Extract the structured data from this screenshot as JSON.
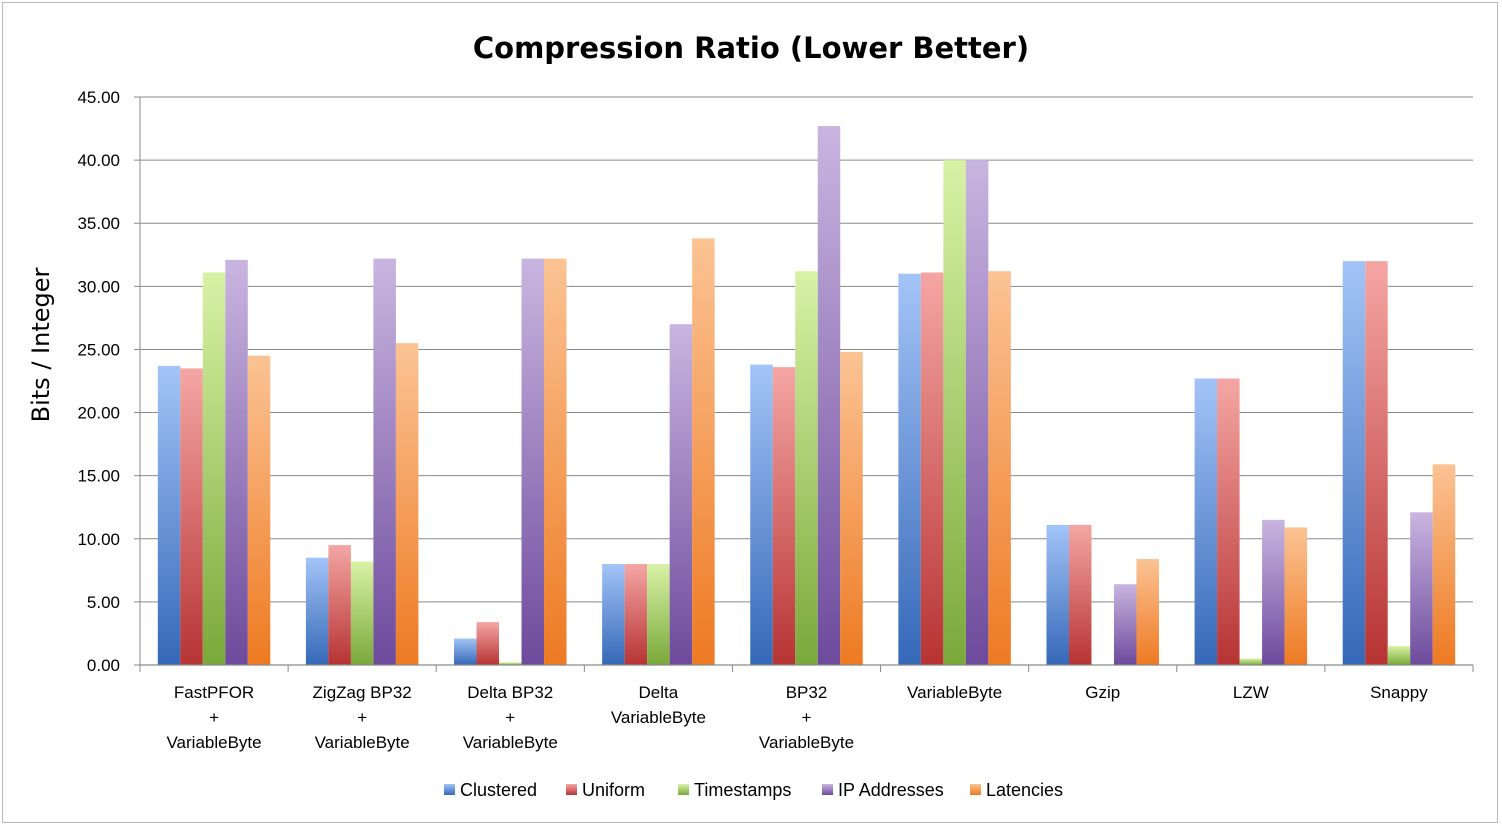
{
  "chart_data": {
    "type": "bar",
    "title": "Compression Ratio (Lower Better)",
    "ylabel": "Bits / Integer",
    "xlabel": "",
    "ylim": [
      0,
      45
    ],
    "ytick_step": 5,
    "ytick_labels": [
      "0.00",
      "5.00",
      "10.00",
      "15.00",
      "20.00",
      "25.00",
      "30.00",
      "35.00",
      "40.00",
      "45.00"
    ],
    "grid": true,
    "legend_position": "bottom",
    "categories": [
      [
        "FastPFOR",
        "+",
        "VariableByte"
      ],
      [
        "ZigZag BP32",
        "+",
        "VariableByte"
      ],
      [
        "Delta BP32",
        "+",
        "VariableByte"
      ],
      [
        "Delta",
        "VariableByte"
      ],
      [
        "BP32",
        "+",
        "VariableByte"
      ],
      [
        "VariableByte"
      ],
      [
        "Gzip"
      ],
      [
        "LZW"
      ],
      [
        "Snappy"
      ]
    ],
    "series": [
      {
        "name": "Clustered",
        "color_top": "#a3c4f7",
        "color_bottom": "#3568b8",
        "values": [
          23.7,
          8.5,
          2.1,
          8.0,
          23.8,
          31.0,
          11.1,
          22.7,
          32.0
        ]
      },
      {
        "name": "Uniform",
        "color_top": "#f4a6a4",
        "color_bottom": "#b73333",
        "values": [
          23.5,
          9.5,
          3.4,
          8.0,
          23.6,
          31.1,
          11.1,
          22.7,
          32.0
        ]
      },
      {
        "name": "Timestamps",
        "color_top": "#d8f2a6",
        "color_bottom": "#7aa93a",
        "values": [
          31.1,
          8.2,
          0.2,
          8.0,
          31.2,
          40.0,
          0.0,
          0.5,
          1.5
        ]
      },
      {
        "name": "IP Addresses",
        "color_top": "#c9b5e0",
        "color_bottom": "#6d4a9c",
        "values": [
          32.1,
          32.2,
          32.2,
          27.0,
          42.7,
          40.0,
          6.4,
          11.5,
          12.1
        ]
      },
      {
        "name": "Latencies",
        "color_top": "#fbc394",
        "color_bottom": "#ee7a22",
        "values": [
          24.5,
          25.5,
          32.2,
          33.8,
          24.8,
          31.2,
          8.4,
          10.9,
          15.9
        ]
      }
    ]
  }
}
